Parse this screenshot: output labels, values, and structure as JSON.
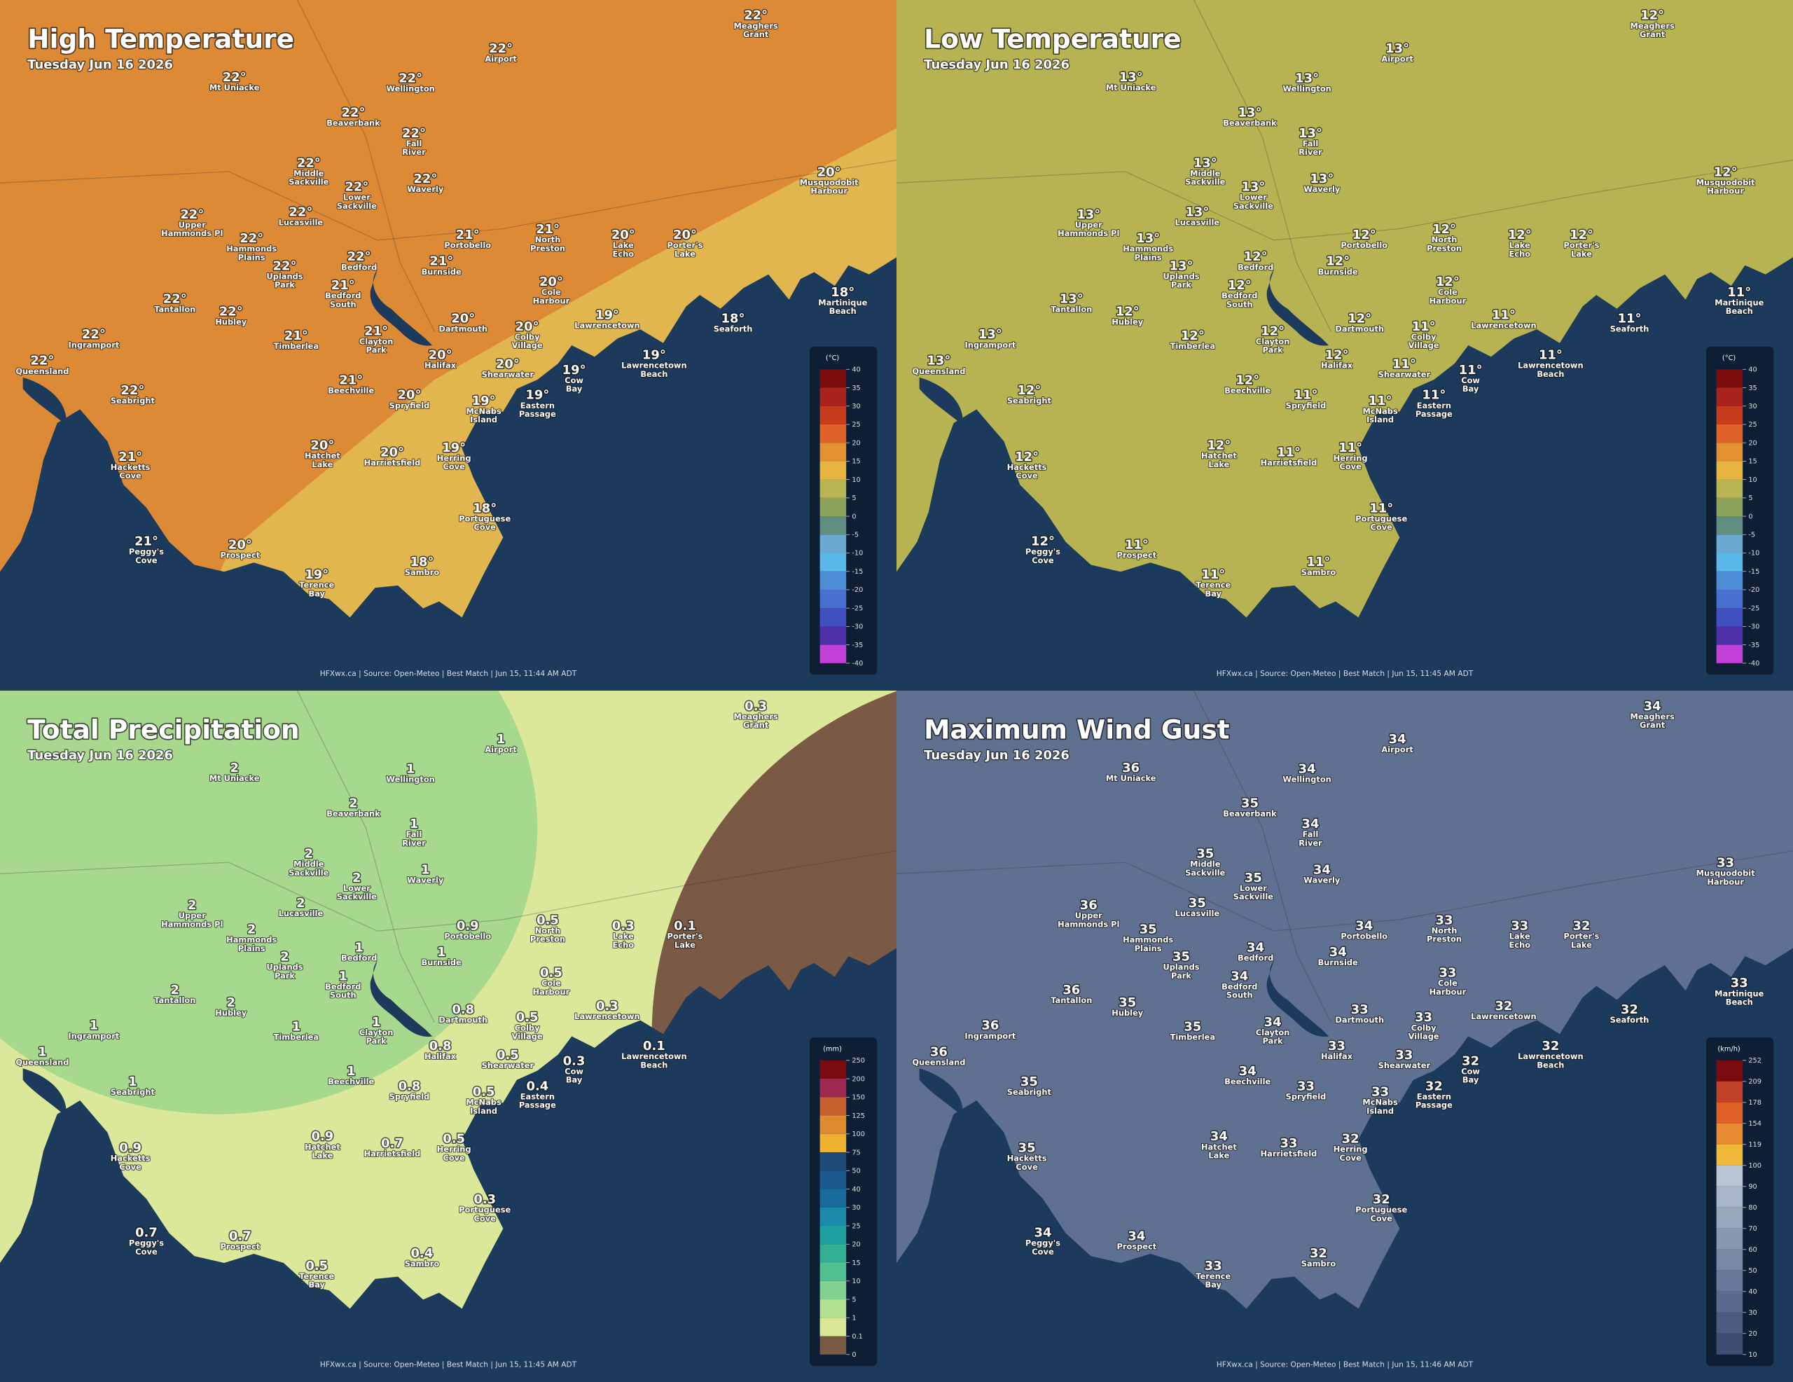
{
  "places": [
    [
      "Meaghers",
      "Grant"
    ],
    [
      "Airport"
    ],
    [
      "Mt Uniacke"
    ],
    [
      "Wellington"
    ],
    [
      "Beaverbank"
    ],
    [
      "Fall",
      "River"
    ],
    [
      "Middle",
      "Sackville"
    ],
    [
      "Lower",
      "Sackville"
    ],
    [
      "Waverly"
    ],
    [
      "Musquodobit",
      "Harbour"
    ],
    [
      "Upper",
      "Hammonds Pl"
    ],
    [
      "Lucasville"
    ],
    [
      "Hammonds",
      "Plains"
    ],
    [
      "Portobello"
    ],
    [
      "North",
      "Preston"
    ],
    [
      "Lake",
      "Echo"
    ],
    [
      "Porter's",
      "Lake"
    ],
    [
      "Bedford"
    ],
    [
      "Burnside"
    ],
    [
      "Uplands",
      "Park"
    ],
    [
      "Cole",
      "Harbour"
    ],
    [
      "Martinique",
      "Beach"
    ],
    [
      "Tantallon"
    ],
    [
      "Bedford",
      "South"
    ],
    [
      "Hubley"
    ],
    [
      "Dartmouth"
    ],
    [
      "Lawrencetown"
    ],
    [
      "Seaforth"
    ],
    [
      "Ingramport"
    ],
    [
      "Timberlea"
    ],
    [
      "Clayton",
      "Park"
    ],
    [
      "Colby",
      "Village"
    ],
    [
      "Queensland"
    ],
    [
      "Halifax"
    ],
    [
      "Lawrencetown",
      "Beach"
    ],
    [
      "Shearwater"
    ],
    [
      "Cow",
      "Bay"
    ],
    [
      "Beechville"
    ],
    [
      "Seabright"
    ],
    [
      "Spryfield"
    ],
    [
      "McNabs",
      "Island"
    ],
    [
      "Eastern",
      "Passage"
    ],
    [
      "Hatchet",
      "Lake"
    ],
    [
      "Harrietsfield"
    ],
    [
      "Herring",
      "Cove"
    ],
    [
      "Hacketts",
      "Cove"
    ],
    [
      "Portuguese",
      "Cove"
    ],
    [
      "Peggy's",
      "Cove"
    ],
    [
      "Prospect"
    ],
    [
      "Sambro"
    ],
    [
      "Terence",
      "Bay"
    ]
  ],
  "panels": [
    {
      "title": "High Temperature",
      "date": "Tuesday Jun 16 2026",
      "readings": [
        "22°",
        "22°",
        "22°",
        "22°",
        "22°",
        "22°",
        "22°",
        "22°",
        "22°",
        "20°",
        "22°",
        "22°",
        "22°",
        "21°",
        "21°",
        "20°",
        "20°",
        "22°",
        "21°",
        "22°",
        "20°",
        "18°",
        "22°",
        "21°",
        "22°",
        "20°",
        "19°",
        "18°",
        "22°",
        "21°",
        "21°",
        "20°",
        "22°",
        "20°",
        "19°",
        "20°",
        "19°",
        "21°",
        "22°",
        "20°",
        "19°",
        "19°",
        "20°",
        "20°",
        "19°",
        "21°",
        "18°",
        "21°",
        "20°",
        "18°",
        "19°"
      ],
      "legend": {
        "unit": "(°C)",
        "ticks": [
          40,
          35,
          30,
          25,
          20,
          15,
          10,
          5,
          0,
          -5,
          -10,
          -15,
          -20,
          -25,
          -30,
          -35,
          -40
        ],
        "colors": [
          "#7a0c0c",
          "#a8221c",
          "#c83c1e",
          "#e0622a",
          "#e5902e",
          "#e8b440",
          "#b9b452",
          "#8ba45a",
          "#5e8f80",
          "#6aaad0",
          "#58b8e8",
          "#4e8ed8",
          "#4870d0",
          "#4050c0",
          "#5030a8",
          "#c040d8"
        ]
      },
      "footer": "HFXwx.ca | Source: Open-Meteo | Best Match | Jun 15, 11:44 AM ADT"
    },
    {
      "title": "Low Temperature",
      "date": "Tuesday Jun 16 2026",
      "readings": [
        "12°",
        "13°",
        "13°",
        "13°",
        "13°",
        "13°",
        "13°",
        "13°",
        "13°",
        "12°",
        "13°",
        "13°",
        "13°",
        "12°",
        "12°",
        "12°",
        "12°",
        "12°",
        "12°",
        "13°",
        "12°",
        "11°",
        "13°",
        "12°",
        "12°",
        "12°",
        "11°",
        "11°",
        "13°",
        "12°",
        "12°",
        "11°",
        "13°",
        "12°",
        "11°",
        "11°",
        "11°",
        "12°",
        "12°",
        "11°",
        "11°",
        "11°",
        "12°",
        "11°",
        "11°",
        "12°",
        "11°",
        "12°",
        "11°",
        "11°",
        "11°"
      ],
      "legend": {
        "unit": "(°C)",
        "ticks": [
          40,
          35,
          30,
          25,
          20,
          15,
          10,
          5,
          0,
          -5,
          -10,
          -15,
          -20,
          -25,
          -30,
          -35,
          -40
        ],
        "colors": [
          "#7a0c0c",
          "#a8221c",
          "#c83c1e",
          "#e0622a",
          "#e5902e",
          "#e8b440",
          "#b9b452",
          "#8ba45a",
          "#5e8f80",
          "#6aaad0",
          "#58b8e8",
          "#4e8ed8",
          "#4870d0",
          "#4050c0",
          "#5030a8",
          "#c040d8"
        ]
      },
      "footer": "HFXwx.ca | Source: Open-Meteo | Best Match | Jun 15, 11:45 AM ADT"
    },
    {
      "title": "Total Precipitation",
      "date": "Tuesday Jun 16 2026",
      "readings": [
        0.3,
        1,
        2,
        1,
        2,
        1,
        2,
        2,
        1,
        null,
        2,
        2,
        2,
        0.9,
        0.5,
        0.3,
        0.1,
        1,
        1,
        2,
        0.5,
        null,
        2,
        1,
        2,
        0.8,
        0.3,
        null,
        1,
        1,
        1,
        0.5,
        1,
        0.8,
        0.1,
        0.5,
        0.3,
        1,
        1,
        0.8,
        0.5,
        0.4,
        0.9,
        0.7,
        0.5,
        0.9,
        0.3,
        0.7,
        0.7,
        0.4,
        0.5
      ],
      "legend": {
        "unit": "(mm)",
        "ticks": [
          250,
          200,
          150,
          125,
          100,
          75,
          50,
          40,
          30,
          25,
          20,
          15,
          10,
          5,
          1,
          0.1,
          0
        ],
        "colors": [
          "#7a0c10",
          "#a02850",
          "#c86030",
          "#e08a30",
          "#f0b030",
          "#1e4a78",
          "#1a5a8c",
          "#186a9c",
          "#1a8aa8",
          "#20a0a0",
          "#30b090",
          "#50c090",
          "#80d090",
          "#b0e090",
          "#d8e898",
          "#7a5a44"
        ]
      },
      "footer": "HFXwx.ca | Source: Open-Meteo | Best Match | Jun 15, 11:45 AM ADT"
    },
    {
      "title": "Maximum Wind Gust",
      "date": "Tuesday Jun 16 2026",
      "readings": [
        34,
        34,
        36,
        34,
        35,
        34,
        35,
        35,
        34,
        33,
        36,
        35,
        35,
        34,
        33,
        33,
        32,
        34,
        34,
        35,
        33,
        33,
        36,
        34,
        35,
        33,
        32,
        32,
        36,
        35,
        34,
        33,
        36,
        33,
        32,
        33,
        32,
        34,
        35,
        33,
        33,
        32,
        34,
        33,
        32,
        35,
        32,
        34,
        34,
        32,
        33
      ],
      "legend": {
        "unit": "(km/h)",
        "ticks": [
          252,
          209,
          178,
          154,
          119,
          100,
          90,
          80,
          70,
          60,
          50,
          40,
          30,
          20,
          10
        ],
        "colors": [
          "#7a0c10",
          "#c04028",
          "#e06028",
          "#e88a30",
          "#f0b838",
          "#b8c4d4",
          "#a8b4c8",
          "#98a8bc",
          "#8898b0",
          "#7888a4",
          "#687898",
          "#5a6a8c",
          "#4c5c80",
          "#3e4e72"
        ]
      },
      "footer": "HFXwx.ca | Source: Open-Meteo | Best Match | Jun 15, 11:46 AM ADT"
    }
  ]
}
